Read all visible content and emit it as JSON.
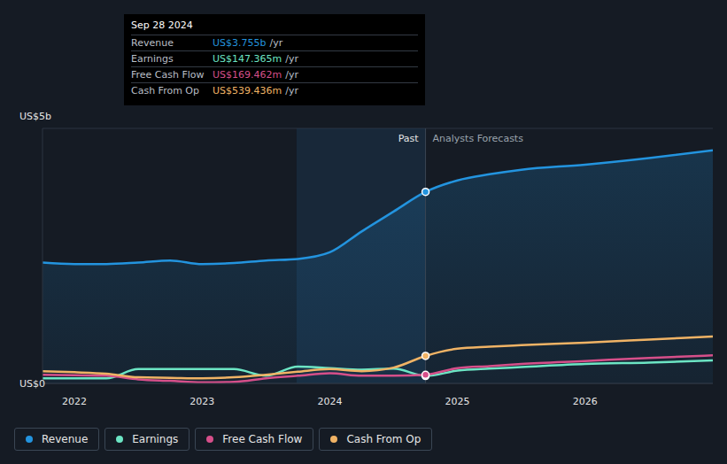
{
  "chart_data": {
    "type": "line",
    "grid": true,
    "legend": "bottom",
    "x": [
      2021.75,
      2022.0,
      2022.25,
      2022.5,
      2022.75,
      2023.0,
      2023.25,
      2023.5,
      2023.75,
      2024.0,
      2024.25,
      2024.5,
      2024.75,
      2025.0,
      2025.25,
      2025.5,
      2026.0,
      2026.5,
      2027.0
    ],
    "xlim": [
      2021.75,
      2027.0
    ],
    "xticks": [
      2022,
      2023,
      2024,
      2025,
      2026
    ],
    "ylim": [
      0,
      5
    ],
    "yticks": [
      {
        "value": 0,
        "label": "US$0"
      },
      {
        "value": 5,
        "label": "US$5b"
      }
    ],
    "series": [
      {
        "name": "Revenue",
        "type": "area",
        "color": "#2394df",
        "values": [
          2.37,
          2.34,
          2.34,
          2.37,
          2.41,
          2.34,
          2.36,
          2.41,
          2.44,
          2.57,
          2.98,
          3.37,
          3.755,
          3.98,
          4.1,
          4.19,
          4.29,
          4.42,
          4.57
        ]
      },
      {
        "name": "Earnings",
        "type": "line",
        "color": "#6ce5c4",
        "values": [
          0.1,
          0.1,
          0.1,
          0.28,
          0.28,
          0.28,
          0.28,
          0.15,
          0.33,
          0.3,
          0.27,
          0.29,
          0.147,
          0.25,
          0.29,
          0.32,
          0.38,
          0.41,
          0.45
        ]
      },
      {
        "name": "Free Cash Flow",
        "type": "line",
        "color": "#d64f8a",
        "values": [
          0.17,
          0.16,
          0.15,
          0.08,
          0.05,
          0.02,
          0.03,
          0.1,
          0.15,
          0.2,
          0.15,
          0.15,
          0.169,
          0.3,
          0.34,
          0.38,
          0.44,
          0.5,
          0.55
        ]
      },
      {
        "name": "Cash From Op",
        "type": "line",
        "color": "#f0b365",
        "values": [
          0.24,
          0.22,
          0.19,
          0.12,
          0.11,
          0.1,
          0.12,
          0.17,
          0.23,
          0.28,
          0.24,
          0.31,
          0.539,
          0.68,
          0.72,
          0.75,
          0.8,
          0.86,
          0.92
        ]
      }
    ],
    "highlight": {
      "x": [
        2023.74,
        2024.75
      ],
      "labels": [
        "Past",
        "Analysts Forecasts"
      ]
    },
    "tooltip": {
      "title": "Sep 28 2024",
      "rows": [
        {
          "label": "Revenue",
          "value": "US$3.755b",
          "unit": "/yr"
        },
        {
          "label": "Earnings",
          "value": "US$147.365m",
          "unit": "/yr"
        },
        {
          "label": "Free Cash Flow",
          "value": "US$169.462m",
          "unit": "/yr"
        },
        {
          "label": "Cash From Op",
          "value": "US$539.436m",
          "unit": "/yr"
        }
      ]
    }
  }
}
